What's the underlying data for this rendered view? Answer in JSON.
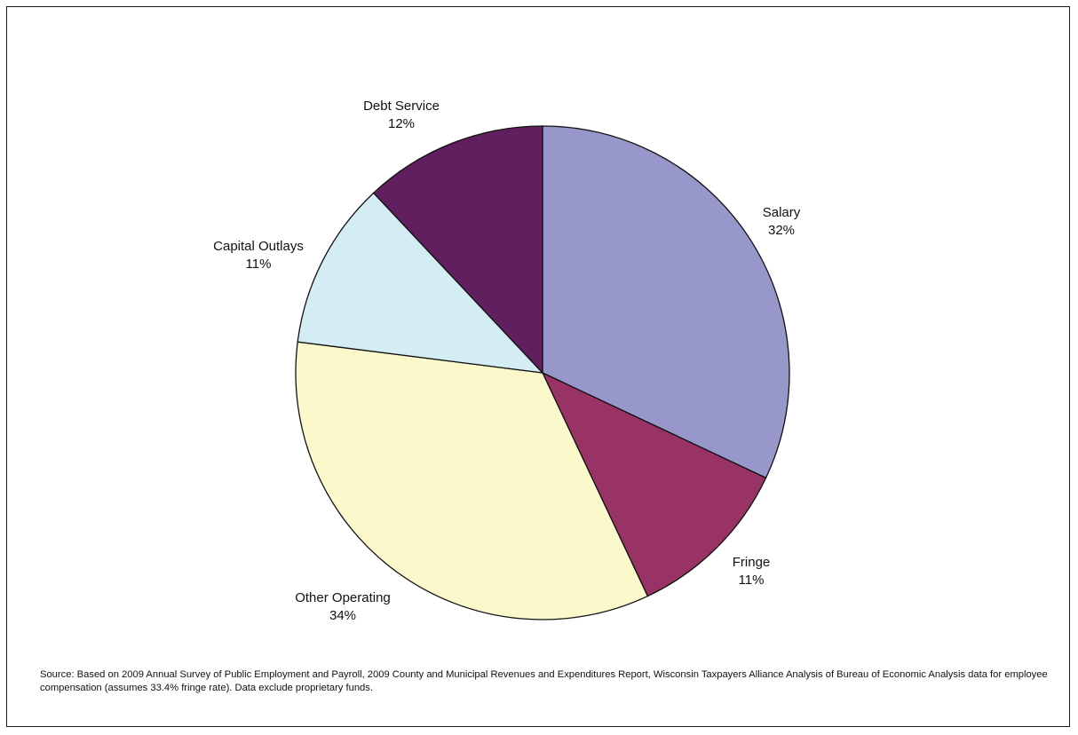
{
  "chart_data": {
    "type": "pie",
    "slices": [
      {
        "label": "Salary",
        "value": 32,
        "value_label": "32%",
        "color": "#9797cb"
      },
      {
        "label": "Fringe",
        "value": 11,
        "value_label": "11%",
        "color": "#993366"
      },
      {
        "label": "Other Operating",
        "value": 34,
        "value_label": "34%",
        "color": "#fbf8cc"
      },
      {
        "label": "Capital Outlays",
        "value": 11,
        "value_label": "11%",
        "color": "#d4ecf3"
      },
      {
        "label": "Debt Service",
        "value": 12,
        "value_label": "12%",
        "color": "#621f60"
      }
    ],
    "start_angle": "12 o'clock",
    "direction": "clockwise",
    "legend": "none"
  },
  "source_note": "Source: Based on 2009 Annual Survey of Public Employment and Payroll, 2009 County and Municipal Revenues and Expenditures Report, Wisconsin Taxpayers Alliance Analysis of Bureau of Economic Analysis data for employee compensation (assumes 33.4% fringe rate). Data exclude proprietary funds."
}
